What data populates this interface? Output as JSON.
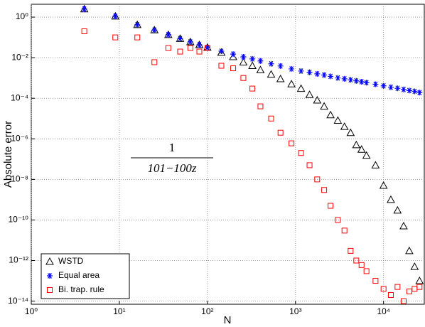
{
  "chart_data": {
    "type": "scatter",
    "xlabel": "N",
    "ylabel": "Absolute error",
    "annotation": {
      "numerator": "1",
      "denominator": "101−100z"
    },
    "xscale": "log",
    "yscale": "log",
    "grid": true,
    "legend": "lower-left",
    "xlim": [
      1,
      29000
    ],
    "ylim": [
      7e-15,
      4.3
    ],
    "xticks": [
      {
        "value": 1,
        "label": "10⁰"
      },
      {
        "value": 10,
        "label": "10¹"
      },
      {
        "value": 100,
        "label": "10²"
      },
      {
        "value": 1000,
        "label": "10³"
      },
      {
        "value": 10000,
        "label": "10⁴"
      }
    ],
    "yticks": [
      {
        "value": 1,
        "label": "10⁰"
      },
      {
        "value": 0.01,
        "label": "10⁻²"
      },
      {
        "value": 0.0001,
        "label": "10⁻⁴"
      },
      {
        "value": 1e-06,
        "label": "10⁻⁶"
      },
      {
        "value": 1e-08,
        "label": "10⁻⁸"
      },
      {
        "value": 1e-10,
        "label": "10⁻¹⁰"
      },
      {
        "value": 1e-12,
        "label": "10⁻¹²"
      },
      {
        "value": 1e-14,
        "label": "10⁻¹⁴"
      }
    ],
    "x": [
      4,
      9,
      16,
      25,
      36,
      49,
      64,
      81,
      100,
      144,
      196,
      256,
      324,
      400,
      529,
      676,
      900,
      1156,
      1444,
      1764,
      2116,
      2500,
      3025,
      3600,
      4225,
      4900,
      5625,
      6400,
      8100,
      10000,
      12100,
      14400,
      16900,
      19600,
      22500,
      25600
    ],
    "series": [
      {
        "name": "WSTD",
        "color": "#000000",
        "marker": "triangle",
        "values": [
          2.5,
          1.1,
          0.42,
          0.23,
          0.135,
          0.087,
          0.06,
          0.043,
          0.032,
          0.018,
          0.011,
          0.006,
          0.004,
          0.0025,
          0.0015,
          0.0009,
          0.0005,
          0.0003,
          0.00015,
          8e-05,
          4e-05,
          1.5e-05,
          8e-06,
          4e-06,
          2e-06,
          5e-07,
          3e-07,
          1.5e-07,
          5e-08,
          5e-09,
          1e-09,
          3e-10,
          5e-11,
          3e-12,
          5e-13,
          1e-13
        ]
      },
      {
        "name": "Equal area",
        "color": "#0000ff",
        "marker": "asterisk",
        "values": [
          2.5,
          1.1,
          0.42,
          0.23,
          0.135,
          0.087,
          0.06,
          0.043,
          0.032,
          0.021,
          0.015,
          0.011,
          0.0087,
          0.0069,
          0.005,
          0.0039,
          0.0028,
          0.0022,
          0.0019,
          0.0016,
          0.0014,
          0.0012,
          0.001,
          0.00091,
          0.00081,
          0.00072,
          0.00065,
          0.00059,
          0.00049,
          0.00041,
          0.00035,
          0.00031,
          0.00027,
          0.00024,
          0.00022,
          0.00019
        ]
      },
      {
        "name": "Bi. trap. rule",
        "color": "#ff0000",
        "marker": "square",
        "values": [
          0.2,
          0.1,
          0.1,
          0.006,
          0.03,
          0.02,
          0.03,
          0.02,
          0.03,
          0.004,
          0.003,
          0.001,
          0.0003,
          4e-05,
          1e-05,
          2e-06,
          6e-07,
          2e-07,
          5e-08,
          1e-08,
          3e-09,
          5e-10,
          1e-10,
          3e-11,
          3e-12,
          1e-12,
          6e-13,
          3e-13,
          1e-13,
          4e-14,
          2e-14,
          5e-14,
          1e-14,
          3e-14,
          4e-14,
          5e-14
        ]
      }
    ]
  }
}
